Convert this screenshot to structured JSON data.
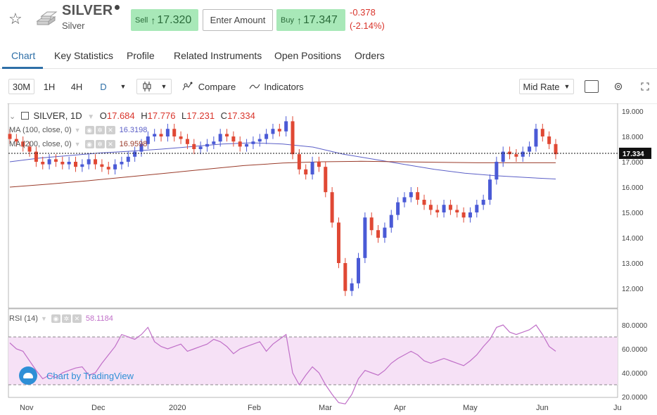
{
  "header": {
    "title": "SILVER",
    "subtitle": "Silver",
    "sell_label": "Sell",
    "sell_value": "17.320",
    "amount_placeholder": "Enter Amount",
    "buy_label": "Buy",
    "buy_value": "17.347",
    "change_abs": "-0.378",
    "change_pct": "(-2.14%)",
    "up_arrow": "↑",
    "colors": {
      "positive_bg": "#a8e8b8",
      "negative": "#d9352c",
      "accent": "#2e6fa7"
    }
  },
  "tabs": [
    {
      "label": "Chart",
      "active": true
    },
    {
      "label": "Key Statistics"
    },
    {
      "label": "Profile"
    },
    {
      "label": "Related Instruments"
    },
    {
      "label": "Open Positions"
    },
    {
      "label": "Orders"
    }
  ],
  "toolbar": {
    "intervals": [
      "30M",
      "1H",
      "4H",
      "D"
    ],
    "active_interval": "D",
    "compare_label": "Compare",
    "indicators_label": "Indicators",
    "rate_label": "Mid Rate"
  },
  "legend": {
    "symbol": "SILVER, 1D",
    "o_label": "O",
    "o_value": "17.684",
    "h_label": "H",
    "h_value": "17.776",
    "l_label": "L",
    "l_value": "17.231",
    "c_label": "C",
    "c_value": "17.334",
    "ma100_label": "MA (100, close, 0)",
    "ma100_value": "16.3198",
    "ma200_label": "MA (200, close, 0)",
    "ma200_value": "16.9598",
    "rsi_label": "RSI (14)",
    "rsi_value": "58.1184"
  },
  "watermark": "Chart by TradingView",
  "chart_data": {
    "type": "line",
    "title": "SILVER, 1D",
    "x_labels": [
      "Nov",
      "Dec",
      "2020",
      "Feb",
      "Mar",
      "Apr",
      "May",
      "Jun",
      "Ju"
    ],
    "y_ticks": [
      "19.000",
      "18.000",
      "17.000",
      "16.000",
      "15.000",
      "14.000",
      "13.000",
      "12.000"
    ],
    "last_price_label": "17.334",
    "rsi_ticks": [
      "80.0000",
      "60.0000",
      "40.0000",
      "20.0000"
    ],
    "rsi_bands": [
      70,
      30
    ],
    "series": [
      {
        "name": "SILVER",
        "color": "#d9352c",
        "values": [
          17.9,
          17.8,
          17.6,
          17.4,
          17.0,
          16.9,
          17.1,
          17.0,
          16.9,
          17.0,
          16.8,
          16.9,
          17.1,
          16.9,
          16.8,
          16.7,
          16.9,
          17.0,
          17.2,
          17.4,
          17.7,
          18.0,
          18.1,
          18.0,
          18.3,
          18.0,
          17.9,
          17.7,
          17.5,
          17.6,
          17.7,
          17.8,
          18.1,
          18.0,
          17.8,
          17.6,
          17.7,
          17.8,
          17.9,
          18.1,
          18.3,
          18.2,
          18.6,
          17.3,
          16.7,
          16.5,
          17.0,
          16.8,
          15.8,
          14.6,
          13.0,
          11.9,
          12.2,
          13.2,
          14.8,
          14.3,
          14.0,
          14.4,
          14.9,
          15.4,
          15.6,
          15.8,
          15.5,
          15.3,
          15.1,
          15.0,
          15.3,
          15.1,
          15.0,
          14.8,
          15.0,
          15.3,
          15.5,
          16.3,
          17.0,
          17.4,
          17.3,
          17.2,
          17.4,
          17.6,
          18.3,
          18.0,
          17.7,
          17.3
        ]
      },
      {
        "name": "MA (100, close, 0)",
        "color": "#5b5fc7",
        "values": [
          17.0,
          17.15,
          17.25,
          17.35,
          17.42,
          17.5,
          17.6,
          17.7,
          17.75,
          17.7,
          17.58,
          17.3,
          17.1,
          16.9,
          16.7,
          16.55,
          16.45,
          16.38,
          16.32
        ]
      },
      {
        "name": "MA (200, close, 0)",
        "color": "#9a3b2a",
        "values": [
          16.0,
          16.12,
          16.25,
          16.4,
          16.55,
          16.7,
          16.85,
          16.95,
          17.0,
          17.02,
          17.0,
          16.98,
          16.96,
          16.96,
          16.96
        ]
      },
      {
        "name": "RSI (14)",
        "color": "#c070c8",
        "values": [
          65,
          60,
          58,
          50,
          42,
          35,
          38,
          36,
          40,
          42,
          44,
          45,
          38,
          40,
          48,
          55,
          62,
          72,
          70,
          68,
          72,
          78,
          66,
          62,
          60,
          62,
          64,
          58,
          60,
          62,
          64,
          68,
          66,
          62,
          56,
          60,
          62,
          64,
          66,
          58,
          64,
          68,
          72,
          40,
          30,
          38,
          45,
          40,
          30,
          22,
          15,
          14,
          22,
          35,
          42,
          40,
          38,
          42,
          48,
          52,
          55,
          58,
          55,
          50,
          48,
          50,
          52,
          50,
          48,
          46,
          50,
          55,
          62,
          68,
          78,
          80,
          74,
          72,
          74,
          76,
          80,
          72,
          62,
          58
        ]
      }
    ]
  }
}
